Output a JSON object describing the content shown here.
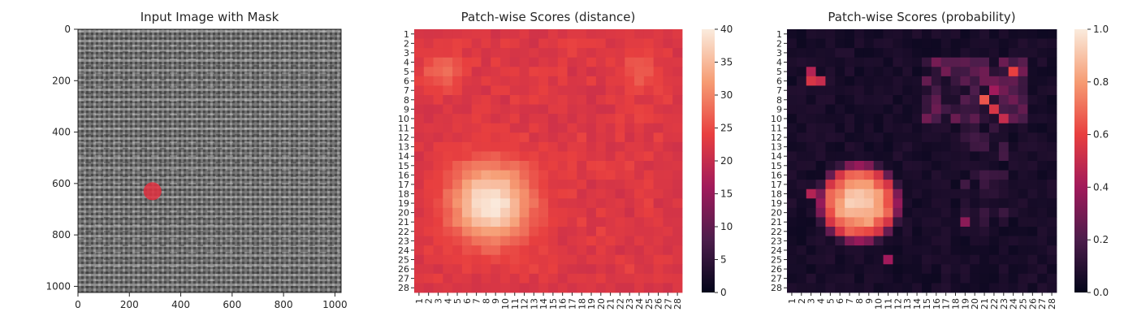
{
  "chart_data": [
    {
      "type": "image",
      "title": "Input Image with Mask",
      "xlabel": "",
      "ylabel": "",
      "xlim": [
        0,
        1024
      ],
      "ylim": [
        1024,
        0
      ],
      "xticks": [
        "0",
        "200",
        "400",
        "600",
        "800",
        "1000"
      ],
      "yticks": [
        "0",
        "200",
        "400",
        "600",
        "800",
        "1000"
      ],
      "mask": {
        "center": [
          290,
          630
        ],
        "radius": 35,
        "color": "#e03040"
      },
      "texture": "woven gray fabric"
    },
    {
      "type": "heatmap",
      "title": "Patch-wise Scores (distance)",
      "rows": [
        "1",
        "2",
        "3",
        "4",
        "5",
        "6",
        "7",
        "8",
        "9",
        "10",
        "11",
        "12",
        "13",
        "14",
        "15",
        "16",
        "17",
        "18",
        "19",
        "20",
        "21",
        "22",
        "23",
        "24",
        "25",
        "26",
        "27",
        "28"
      ],
      "cols": [
        "1",
        "2",
        "3",
        "4",
        "5",
        "6",
        "7",
        "8",
        "9",
        "10",
        "11",
        "12",
        "13",
        "14",
        "15",
        "16",
        "17",
        "18",
        "19",
        "20",
        "21",
        "22",
        "23",
        "24",
        "25",
        "26",
        "27",
        "28"
      ],
      "colorbar": {
        "min": 0,
        "max": 40,
        "ticks": [
          "0",
          "5",
          "10",
          "15",
          "20",
          "25",
          "30",
          "35",
          "40"
        ]
      },
      "baseline": 22,
      "hotspots": [
        {
          "row": 19,
          "col": 8.5,
          "peak": 40,
          "spread": 3
        },
        {
          "row": 5,
          "col": 3.5,
          "peak": 28,
          "spread": 1.5
        },
        {
          "row": 5,
          "col": 24,
          "peak": 27,
          "spread": 1.5
        }
      ]
    },
    {
      "type": "heatmap",
      "title": "Patch-wise Scores (probability)",
      "rows": [
        "1",
        "2",
        "3",
        "4",
        "5",
        "6",
        "7",
        "8",
        "9",
        "10",
        "11",
        "12",
        "13",
        "14",
        "15",
        "16",
        "17",
        "18",
        "19",
        "20",
        "21",
        "22",
        "23",
        "24",
        "25",
        "26",
        "27",
        "28"
      ],
      "cols": [
        "1",
        "2",
        "3",
        "4",
        "5",
        "6",
        "7",
        "8",
        "9",
        "10",
        "11",
        "12",
        "13",
        "14",
        "15",
        "16",
        "17",
        "18",
        "19",
        "20",
        "21",
        "22",
        "23",
        "24",
        "25",
        "26",
        "27",
        "28"
      ],
      "colorbar": {
        "min": 0.0,
        "max": 1.0,
        "ticks": [
          "0.0",
          "0.2",
          "0.4",
          "0.6",
          "0.8",
          "1.0"
        ]
      },
      "baseline": 0.03,
      "blob": {
        "row_range": [
          16,
          22
        ],
        "col_range": [
          5,
          11
        ],
        "value": 0.92
      },
      "spots": [
        {
          "row": 6,
          "col": 3,
          "value": 0.55
        },
        {
          "row": 6,
          "col": 4,
          "value": 0.5
        },
        {
          "row": 5,
          "col": 3,
          "value": 0.45
        },
        {
          "row": 5,
          "col": 24,
          "value": 0.6
        },
        {
          "row": 8,
          "col": 21,
          "value": 0.65
        },
        {
          "row": 9,
          "col": 22,
          "value": 0.55
        },
        {
          "row": 10,
          "col": 23,
          "value": 0.5
        },
        {
          "row": 7,
          "col": 22,
          "value": 0.4
        },
        {
          "row": 18,
          "col": 3,
          "value": 0.45
        },
        {
          "row": 21,
          "col": 19,
          "value": 0.35
        },
        {
          "row": 25,
          "col": 11,
          "value": 0.4
        }
      ]
    }
  ]
}
